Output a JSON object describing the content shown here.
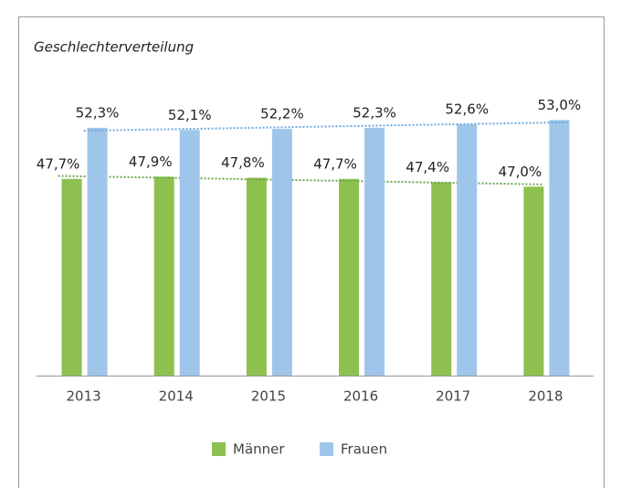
{
  "chart_data": {
    "type": "bar",
    "title": "Geschlechterverteilung",
    "categories": [
      "2013",
      "2014",
      "2015",
      "2016",
      "2017",
      "2018"
    ],
    "series": [
      {
        "name": "Männer",
        "color": "#8dc04f",
        "values": [
          47.7,
          47.9,
          47.8,
          47.7,
          47.4,
          47.0
        ],
        "value_labels": [
          "47,7%",
          "47,9%",
          "47,8%",
          "47,7%",
          "47,4%",
          "47,0%"
        ]
      },
      {
        "name": "Frauen",
        "color": "#9fc5ea",
        "values": [
          52.3,
          52.1,
          52.2,
          52.3,
          52.6,
          53.0
        ],
        "value_labels": [
          "52,3%",
          "52,1%",
          "52,2%",
          "52,3%",
          "52,6%",
          "53,0%"
        ]
      }
    ],
    "ylim": [
      30,
      55
    ],
    "trendline": true,
    "legend": "bottom"
  }
}
